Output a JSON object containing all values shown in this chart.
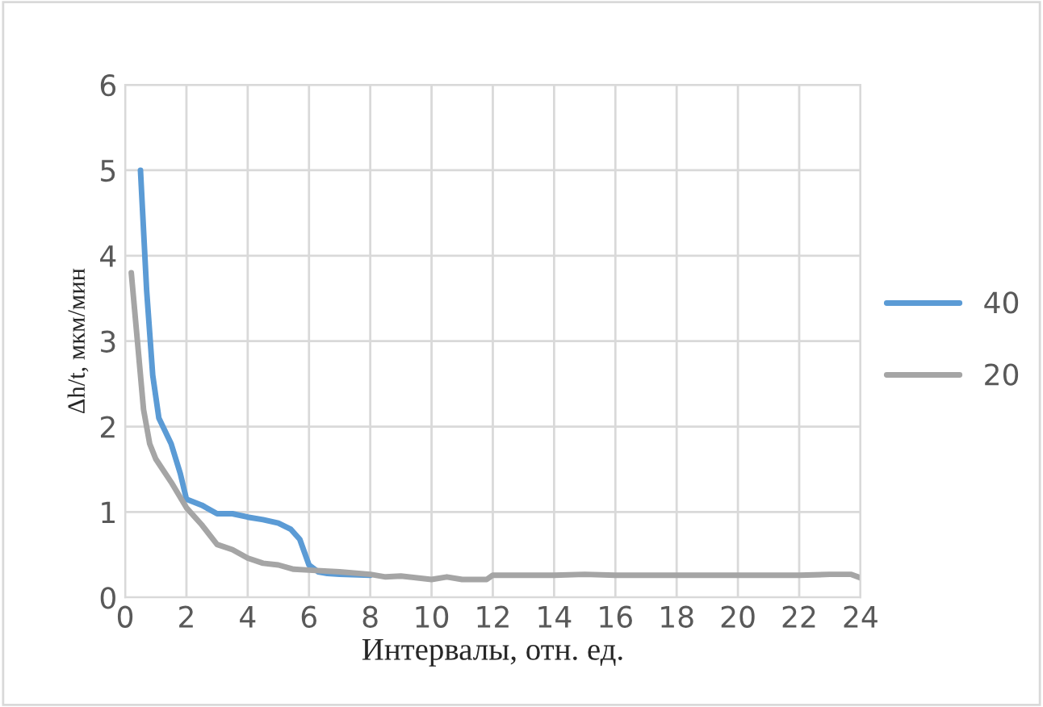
{
  "chart_data": {
    "type": "line",
    "xlabel": "Интервалы, отн. ед.",
    "ylabel": "Δh/t, мкм/мин",
    "xlim": [
      0,
      24
    ],
    "xticks": [
      0,
      2,
      4,
      6,
      8,
      10,
      12,
      14,
      16,
      18,
      20,
      22,
      24
    ],
    "ylim": [
      0,
      6
    ],
    "yticks": [
      0,
      1,
      2,
      3,
      4,
      5,
      6
    ],
    "grid": true,
    "legend": "right",
    "series": [
      {
        "name": "40",
        "color": "#5b9bd5",
        "x": [
          0.5,
          0.7,
          0.9,
          1.1,
          1.5,
          1.8,
          2.0,
          2.5,
          3.0,
          3.5,
          4.0,
          4.5,
          5.0,
          5.4,
          5.7,
          6.0,
          6.3,
          6.6,
          7.0,
          8.0
        ],
        "values": [
          5.0,
          3.6,
          2.6,
          2.1,
          1.8,
          1.45,
          1.15,
          1.08,
          0.98,
          0.98,
          0.94,
          0.91,
          0.87,
          0.8,
          0.68,
          0.38,
          0.3,
          0.28,
          0.27,
          0.26
        ]
      },
      {
        "name": "20",
        "color": "#a5a5a5",
        "x": [
          0.2,
          0.4,
          0.6,
          0.8,
          1.0,
          1.5,
          2.0,
          2.5,
          3.0,
          3.5,
          4.0,
          4.5,
          5.0,
          5.5,
          6.0,
          7.0,
          8.0,
          8.5,
          9.0,
          10.0,
          10.5,
          11.0,
          11.8,
          12.0,
          14.0,
          15.0,
          16.0,
          18.0,
          20.0,
          22.0,
          23.0,
          23.7,
          24.0
        ],
        "values": [
          3.8,
          3.0,
          2.2,
          1.8,
          1.62,
          1.35,
          1.05,
          0.85,
          0.62,
          0.56,
          0.46,
          0.4,
          0.38,
          0.33,
          0.32,
          0.3,
          0.27,
          0.24,
          0.25,
          0.21,
          0.24,
          0.21,
          0.21,
          0.26,
          0.26,
          0.27,
          0.26,
          0.26,
          0.26,
          0.26,
          0.27,
          0.27,
          0.23
        ]
      }
    ]
  }
}
